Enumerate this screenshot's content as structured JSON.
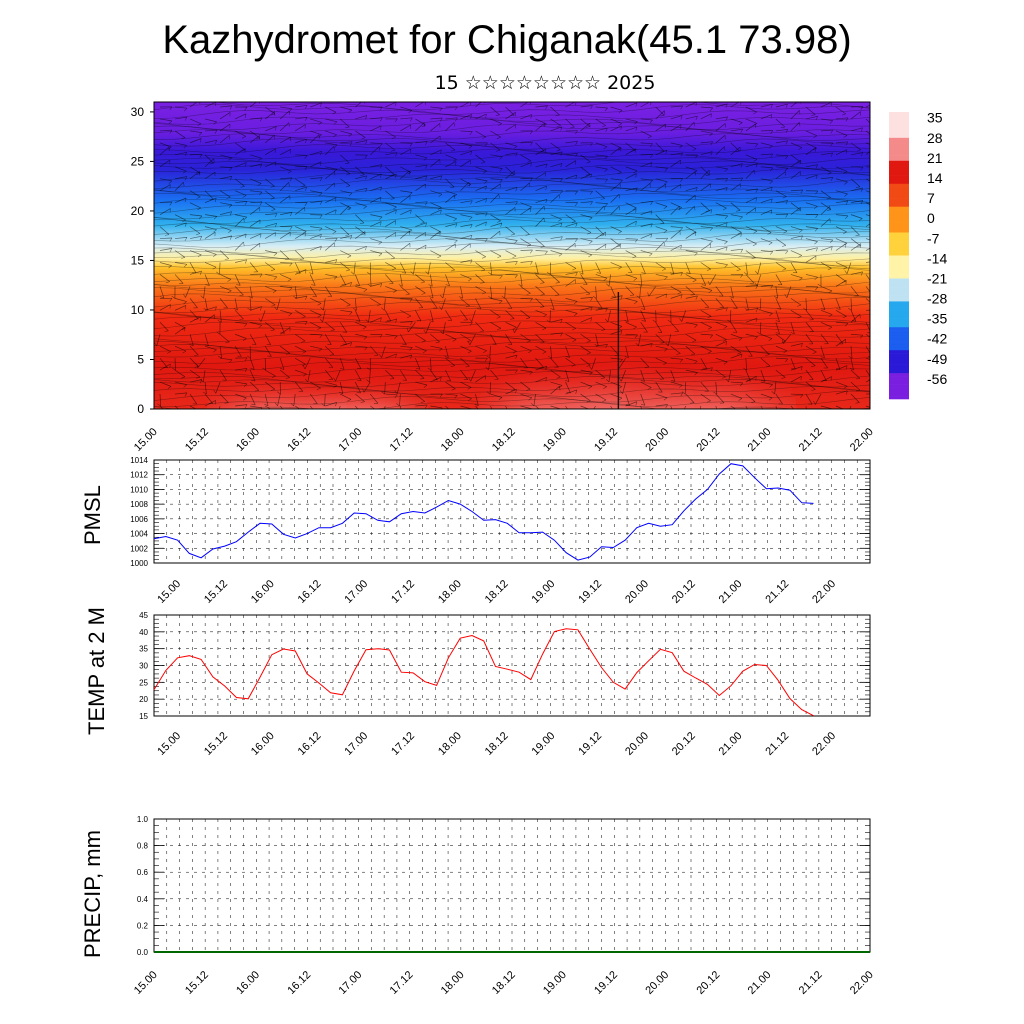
{
  "header": {
    "title": "Kazhydromet for Chiganak(45.1 73.98)",
    "subtitle": "15 ☆☆☆☆☆☆☆☆ 2025"
  },
  "chart_data": [
    {
      "type": "heatmap",
      "name": "vertical-cross-section",
      "x_ticks": [
        "15.00",
        "15.12",
        "16.00",
        "16.12",
        "17.00",
        "17.12",
        "18.00",
        "18.12",
        "19.00",
        "19.12",
        "20.00",
        "20.12",
        "21.00",
        "21.12",
        "22.00"
      ],
      "y_ticks": [
        "0",
        "5",
        "10",
        "15",
        "20",
        "25",
        "30"
      ],
      "ylim": [
        0,
        31
      ],
      "colorbar_labels": [
        "35",
        "28",
        "21",
        "14",
        "7",
        "0",
        "-7",
        "-14",
        "-21",
        "-28",
        "-35",
        "-42",
        "-49",
        "-56"
      ],
      "colorbar_range": [
        -63,
        37
      ],
      "colors": [
        "#7a1fe0",
        "#2a1ad8",
        "#1b5ef0",
        "#26a8ee",
        "#bfe2f3",
        "#fff3a8",
        "#ffd23c",
        "#ff9418",
        "#f24a14",
        "#e01810",
        "#f58a8a",
        "#fde0e0"
      ]
    },
    {
      "type": "line",
      "name": "pmsl",
      "ylabel": "PMSL",
      "ylim": [
        1000,
        1014
      ],
      "y_ticks": [
        "1000",
        "1002",
        "1004",
        "1006",
        "1008",
        "1010",
        "1012",
        "1014"
      ],
      "x_ticks": [
        "15.00",
        "15.12",
        "16.00",
        "16.12",
        "17.00",
        "17.12",
        "18.00",
        "18.12",
        "19.00",
        "19.12",
        "20.00",
        "20.12",
        "21.00",
        "21.12",
        "22.00"
      ],
      "color": "#0000ff",
      "x": [
        0.0,
        0.125,
        0.25,
        0.375,
        0.5,
        0.625,
        0.75,
        0.875,
        1.0,
        1.125,
        1.25,
        1.375,
        1.5,
        1.625,
        1.75,
        1.875,
        2.0,
        2.125,
        2.25,
        2.375,
        2.5,
        2.625,
        2.75,
        2.875,
        3.0,
        3.125,
        3.25,
        3.375,
        3.5,
        3.625,
        3.75,
        3.875,
        4.0,
        4.125,
        4.25,
        4.375,
        4.5,
        4.625,
        4.75,
        4.875,
        5.0,
        5.125,
        5.25,
        5.375,
        5.5,
        5.625,
        5.75,
        5.875,
        6.0,
        6.125,
        6.25,
        6.375,
        6.5,
        6.625,
        6.75,
        6.875,
        7.0
      ],
      "values": [
        1003.3,
        1003.6,
        1003.1,
        1001.3,
        1000.7,
        1001.9,
        1002.3,
        1002.9,
        1004.2,
        1005.4,
        1005.3,
        1003.9,
        1003.4,
        1004.0,
        1004.8,
        1004.8,
        1005.4,
        1006.8,
        1006.7,
        1005.8,
        1005.6,
        1006.7,
        1007.0,
        1006.8,
        1007.6,
        1008.5,
        1008.0,
        1007.0,
        1005.8,
        1005.9,
        1005.4,
        1004.1,
        1004.1,
        1004.2,
        1003.1,
        1001.4,
        1000.4,
        1000.8,
        1002.2,
        1002.1,
        1003.1,
        1004.8,
        1005.4,
        1005.0,
        1005.2,
        1007.1,
        1008.7,
        1010.0,
        1012.1,
        1013.5,
        1013.2,
        1011.6,
        1010.1,
        1010.2,
        1009.9,
        1008.2,
        1008.1
      ]
    },
    {
      "type": "line",
      "name": "temp-2m",
      "ylabel": "TEMP at 2 M",
      "ylim": [
        15,
        45
      ],
      "y_ticks": [
        "15",
        "20",
        "25",
        "30",
        "35",
        "40",
        "45"
      ],
      "x_ticks": [
        "15.00",
        "15.12",
        "16.00",
        "16.12",
        "17.00",
        "17.12",
        "18.00",
        "18.12",
        "19.00",
        "19.12",
        "20.00",
        "20.12",
        "21.00",
        "21.12",
        "22.00"
      ],
      "color": "#ff0000",
      "x": [
        0.0,
        0.125,
        0.25,
        0.375,
        0.5,
        0.625,
        0.75,
        0.875,
        1.0,
        1.125,
        1.25,
        1.375,
        1.5,
        1.625,
        1.75,
        1.875,
        2.0,
        2.125,
        2.25,
        2.375,
        2.5,
        2.625,
        2.75,
        2.875,
        3.0,
        3.125,
        3.25,
        3.375,
        3.5,
        3.625,
        3.75,
        3.875,
        4.0,
        4.125,
        4.25,
        4.375,
        4.5,
        4.625,
        4.75,
        4.875,
        5.0,
        5.125,
        5.25,
        5.375,
        5.5,
        5.625,
        5.75,
        5.875,
        6.0,
        6.125,
        6.25,
        6.375,
        6.5,
        6.625,
        6.75,
        6.875,
        7.0
      ],
      "values": [
        22.8,
        28.5,
        32.3,
        32.9,
        31.8,
        26.6,
        23.9,
        20.5,
        20.1,
        26.5,
        33.2,
        34.9,
        34.3,
        27.5,
        24.8,
        21.9,
        21.3,
        28.4,
        34.7,
        35.0,
        34.6,
        28.0,
        27.8,
        25.2,
        24.1,
        32.3,
        38.1,
        38.9,
        37.3,
        29.7,
        28.9,
        28.0,
        25.8,
        33.4,
        40.1,
        40.9,
        40.6,
        34.9,
        29.4,
        25.0,
        23.0,
        27.9,
        31.4,
        34.8,
        33.8,
        28.3,
        26.3,
        24.4,
        21.1,
        24.0,
        28.3,
        30.3,
        30.0,
        25.6,
        20.2,
        16.9,
        15.1
      ]
    },
    {
      "type": "line",
      "name": "precip",
      "ylabel": "PRECIP, mm",
      "ylim": [
        0,
        1
      ],
      "y_ticks": [
        "0.0",
        "0.2",
        "0.4",
        "0.6",
        "0.8",
        "1.0"
      ],
      "x_ticks": [
        "15.00",
        "15.12",
        "16.00",
        "16.12",
        "17.00",
        "17.12",
        "18.00",
        "18.12",
        "19.00",
        "19.12",
        "20.00",
        "20.12",
        "21.00",
        "21.12",
        "22.00"
      ],
      "color": "#006600",
      "x": [
        0,
        7
      ],
      "values": [
        0.0,
        0.0
      ]
    }
  ]
}
